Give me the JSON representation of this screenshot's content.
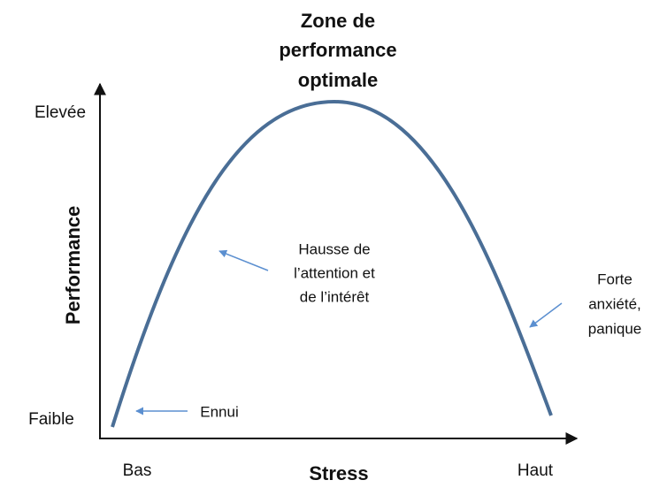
{
  "title": {
    "lines": [
      "Zone de",
      "performance",
      "optimale"
    ]
  },
  "y_axis": {
    "label": "Performance",
    "high": "Elevée",
    "low": "Faible"
  },
  "x_axis": {
    "label": "Stress",
    "low": "Bas",
    "high": "Haut"
  },
  "annotations": {
    "rising": {
      "lines": [
        "Hausse de",
        "l’attention et",
        "de l’intérêt"
      ]
    },
    "falling": {
      "lines": [
        "Forte",
        "anxiété,",
        "panique"
      ]
    },
    "bottom": {
      "lines": [
        "Ennui"
      ]
    }
  }
}
